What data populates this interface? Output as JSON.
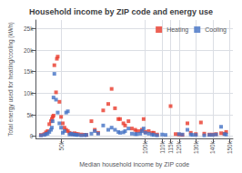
{
  "chart_data": {
    "type": "scatter",
    "title": "Household income by ZIP code and energy use",
    "xlabel": "Median household income by ZIP code",
    "ylabel": "Total energy used for heating/cooling (kWh)",
    "marker": "square",
    "grid": true,
    "legend": "upper right",
    "xlim": [
      35000,
      152000
    ],
    "ylim": [
      -500,
      27000
    ],
    "xticks": [
      {
        "value": 50000,
        "label": "50k"
      },
      {
        "value": 100000,
        "label": "100k"
      },
      {
        "value": 110000,
        "label": "110k"
      },
      {
        "value": 115000,
        "label": "115k"
      },
      {
        "value": 120000,
        "label": "120k"
      },
      {
        "value": 130000,
        "label": "130k"
      },
      {
        "value": 140000,
        "label": "140k"
      },
      {
        "value": 150000,
        "label": "150k"
      }
    ],
    "yticks": [
      0,
      {
        "value": 5000,
        "label": "5k"
      },
      {
        "value": 10000,
        "label": "10k"
      },
      {
        "value": 15000,
        "label": "15k"
      },
      {
        "value": 20000,
        "label": "20k"
      },
      {
        "value": 25000,
        "label": "25k"
      }
    ],
    "series": [
      {
        "name": "Heating",
        "color": "#e8392a",
        "x": [
          38000,
          40000,
          41000,
          42000,
          43000,
          44000,
          44500,
          45000,
          45500,
          46000,
          47000,
          47500,
          48000,
          49000,
          50000,
          51000,
          52000,
          53000,
          54000,
          55000,
          56000,
          57000,
          58000,
          59000,
          60000,
          62000,
          64000,
          65000,
          68000,
          70000,
          72000,
          75000,
          78000,
          80000,
          82000,
          84000,
          85000,
          87000,
          88000,
          90000,
          92000,
          94000,
          95000,
          97000,
          98000,
          99000,
          100000,
          102000,
          104000,
          105000,
          107000,
          115000,
          118000,
          120000,
          122000,
          125000,
          127000,
          130000,
          133000,
          135000,
          138000,
          140000,
          142000,
          145000,
          147000,
          148000
        ],
        "values": [
          300,
          500,
          900,
          1200,
          2800,
          3500,
          4000,
          4500,
          4800,
          16500,
          10200,
          18000,
          18500,
          8000,
          4500,
          3000,
          2000,
          1500,
          1200,
          800,
          600,
          500,
          700,
          500,
          500,
          400,
          350,
          300,
          3500,
          1500,
          800,
          6000,
          7500,
          11000,
          6500,
          4000,
          4000,
          3000,
          2500,
          3500,
          1800,
          1500,
          1200,
          1200,
          1500,
          4000,
          1000,
          1200,
          800,
          800,
          400,
          7000,
          500,
          400,
          300,
          3000,
          800,
          500,
          3200,
          600,
          400,
          400,
          500,
          700,
          600,
          1000
        ]
      },
      {
        "name": "Cooling",
        "color": "#4472c4",
        "x": [
          38000,
          40000,
          41000,
          42000,
          43000,
          44000,
          44500,
          45000,
          45500,
          46000,
          47000,
          48000,
          49000,
          50000,
          51000,
          52000,
          53000,
          54000,
          55000,
          56000,
          57000,
          58000,
          59000,
          60000,
          62000,
          64000,
          65000,
          68000,
          70000,
          72000,
          75000,
          78000,
          80000,
          82000,
          84000,
          85000,
          87000,
          88000,
          90000,
          92000,
          94000,
          95000,
          97000,
          98000,
          99000,
          100000,
          102000,
          104000,
          105000,
          107000,
          110000,
          112000,
          120000,
          122000,
          125000,
          127000,
          128000,
          130000,
          135000,
          138000,
          140000,
          142000,
          145000,
          147000,
          148000
        ],
        "values": [
          200,
          300,
          500,
          600,
          1000,
          1500,
          2000,
          3500,
          9000,
          14500,
          8500,
          5500,
          3000,
          2000,
          800,
          1200,
          5500,
          5800,
          400,
          600,
          400,
          400,
          300,
          300,
          200,
          250,
          300,
          600,
          1200,
          600,
          2500,
          1500,
          2000,
          1500,
          1000,
          800,
          900,
          1200,
          1800,
          600,
          500,
          500,
          600,
          1200,
          1800,
          800,
          600,
          400,
          300,
          200,
          400,
          300,
          500,
          400,
          1500,
          400,
          300,
          300,
          200,
          300,
          300,
          400,
          2200,
          500,
          400
        ]
      }
    ]
  }
}
